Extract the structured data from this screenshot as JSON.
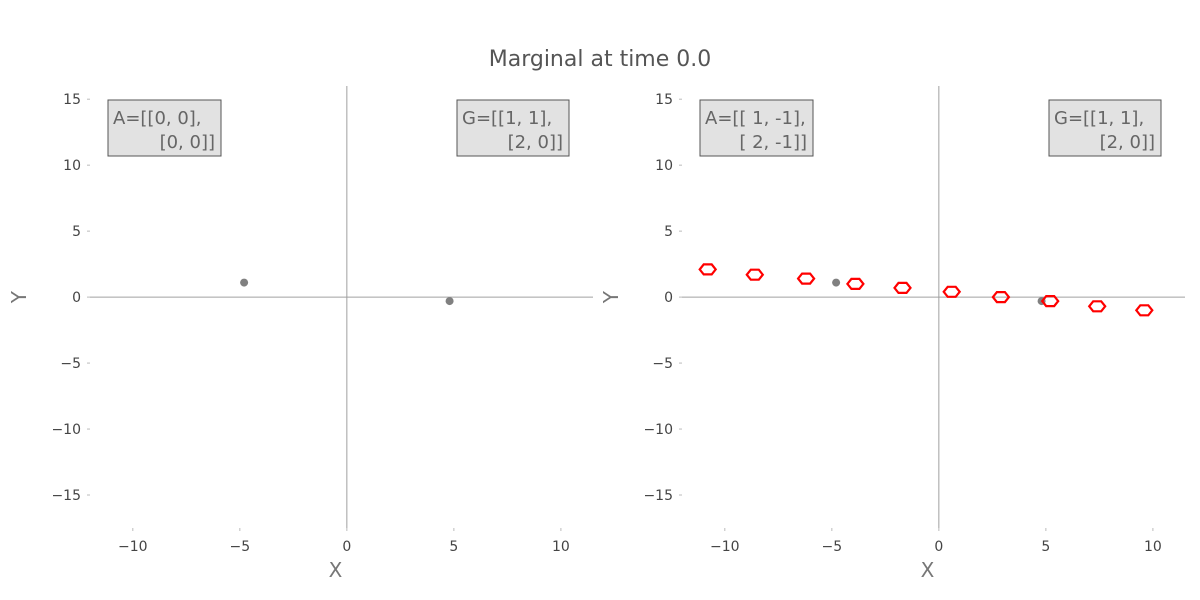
{
  "title": "Marginal at time 0.0",
  "chart_data": [
    {
      "type": "scatter",
      "xlabel": "X",
      "ylabel": "Y",
      "xlim": [
        -12,
        11.5
      ],
      "ylim": [
        -17.5,
        16
      ],
      "xticks": [
        -10,
        -5,
        0,
        5,
        10
      ],
      "yticks": [
        -15,
        -10,
        -5,
        0,
        5,
        10,
        15
      ],
      "annotation_left": [
        "A=[[0, 0],",
        "[0, 0]]"
      ],
      "annotation_right": [
        "G=[[1, 1],",
        "[2, 0]]"
      ],
      "points": [
        [
          -4.8,
          1.1
        ],
        [
          4.8,
          -0.3
        ]
      ],
      "point_color": "#808080",
      "markers": [],
      "marker_color": "#ff0000"
    },
    {
      "type": "scatter",
      "xlabel": "X",
      "ylabel": "Y",
      "xlim": [
        -12,
        11.5
      ],
      "ylim": [
        -17.5,
        16
      ],
      "xticks": [
        -10,
        -5,
        0,
        5,
        10
      ],
      "yticks": [
        -15,
        -10,
        -5,
        0,
        5,
        10,
        15
      ],
      "annotation_left": [
        "A=[[ 1, -1],",
        "[ 2, -1]]"
      ],
      "annotation_right": [
        "G=[[1, 1],",
        "[2, 0]]"
      ],
      "points": [
        [
          -4.8,
          1.1
        ],
        [
          4.8,
          -0.3
        ]
      ],
      "point_color": "#808080",
      "markers": [
        [
          -10.8,
          2.1
        ],
        [
          -8.6,
          1.7
        ],
        [
          -6.2,
          1.4
        ],
        [
          -3.9,
          1.0
        ],
        [
          -1.7,
          0.7
        ],
        [
          0.6,
          0.4
        ],
        [
          2.9,
          0.0
        ],
        [
          5.2,
          -0.3
        ],
        [
          7.4,
          -0.7
        ],
        [
          9.6,
          -1.0
        ]
      ],
      "marker_color": "#ff0000"
    }
  ]
}
